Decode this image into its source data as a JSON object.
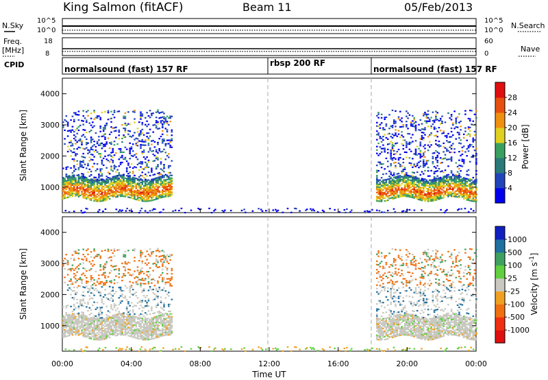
{
  "header": {
    "station": "King Salmon (fitACF)",
    "beam": "Beam 11",
    "date": "05/Feb/2013"
  },
  "side_labels": {
    "nsky": "N.Sky",
    "freq": "Freq.",
    "freq_unit": "[MHz]",
    "cpid": "CPID",
    "nsearch": "N.Search",
    "nave": "Nave"
  },
  "strip_ticks": {
    "noise_left": [
      "10^5",
      "10^0"
    ],
    "noise_right": [
      "10^5",
      "10^0"
    ],
    "freq_left": [
      "18",
      "8"
    ],
    "freq_right": [
      "60",
      "0"
    ]
  },
  "cpid_segments": [
    {
      "label": "normalsound (fast) 157 RF"
    },
    {
      "label": "rbsp 200 RF"
    },
    {
      "label": "normalsound (fast) 157 RF"
    }
  ],
  "colors": {
    "power": [
      "#0000ee",
      "#2244bb",
      "#2a7a7a",
      "#3aa060",
      "#e0d020",
      "#f09010",
      "#e85010",
      "#e01010"
    ],
    "velocity": [
      "#e01010",
      "#f03010",
      "#f07010",
      "#f0a020",
      "#c8c8c0",
      "#60d040",
      "#40a060",
      "#2070a0",
      "#1020c0"
    ]
  },
  "chart_data": [
    {
      "type": "heatmap",
      "name": "power",
      "ylabel": "Slant Range [km]",
      "xlabel": "",
      "xlim": [
        "00:00",
        "24:00"
      ],
      "ylim": [
        180,
        4500
      ],
      "x_ticks": [
        "00:00",
        "04:00",
        "08:00",
        "12:00",
        "16:00",
        "20:00",
        "00:00"
      ],
      "y_ticks": [
        1000,
        2000,
        3000,
        4000
      ],
      "grid": false,
      "mode_boundaries_hours": [
        12,
        18
      ],
      "colorbar": {
        "label": "Power [dB]",
        "ticks": [
          "28",
          "24",
          "20",
          "16",
          "12",
          "8",
          "4"
        ],
        "range": [
          0,
          30
        ]
      },
      "scatter_regions": [
        {
          "t": [
            0.0,
            6.3
          ],
          "range_km": [
            650,
            3500
          ],
          "note": "dense E/F scatter, peak power near 800-1400 km"
        },
        {
          "t": [
            18.2,
            24.0
          ],
          "range_km": [
            600,
            3500
          ],
          "note": "dense scatter, peak power near 700-1200 km"
        },
        {
          "t": [
            0.0,
            24.0
          ],
          "range_km": [
            180,
            350
          ],
          "note": "sparse near-range ground scatter"
        }
      ]
    },
    {
      "type": "heatmap",
      "name": "velocity",
      "ylabel": "Slant Range [km]",
      "xlabel": "Time UT",
      "xlim": [
        "00:00",
        "24:00"
      ],
      "ylim": [
        180,
        4500
      ],
      "x_ticks": [
        "00:00",
        "04:00",
        "08:00",
        "12:00",
        "16:00",
        "20:00",
        "00:00"
      ],
      "y_ticks": [
        1000,
        2000,
        3000,
        4000
      ],
      "grid": false,
      "mode_boundaries_hours": [
        12,
        18
      ],
      "colorbar": {
        "label": "Velocity [m s^-1]",
        "ticks": [
          "1000",
          "500",
          "100",
          "25",
          "-25",
          "-100",
          "-500",
          "-1000"
        ],
        "range": [
          -1000,
          1000
        ]
      },
      "scatter_regions": [
        {
          "t": [
            0.0,
            6.3
          ],
          "range_km": [
            650,
            3500
          ],
          "note": "mostly ground scatter (grey), negative velocities near 3000 km"
        },
        {
          "t": [
            18.2,
            24.0
          ],
          "range_km": [
            600,
            3500
          ],
          "note": "mostly ground scatter (grey), mixed velocities near 2500-3500 km"
        }
      ]
    }
  ]
}
